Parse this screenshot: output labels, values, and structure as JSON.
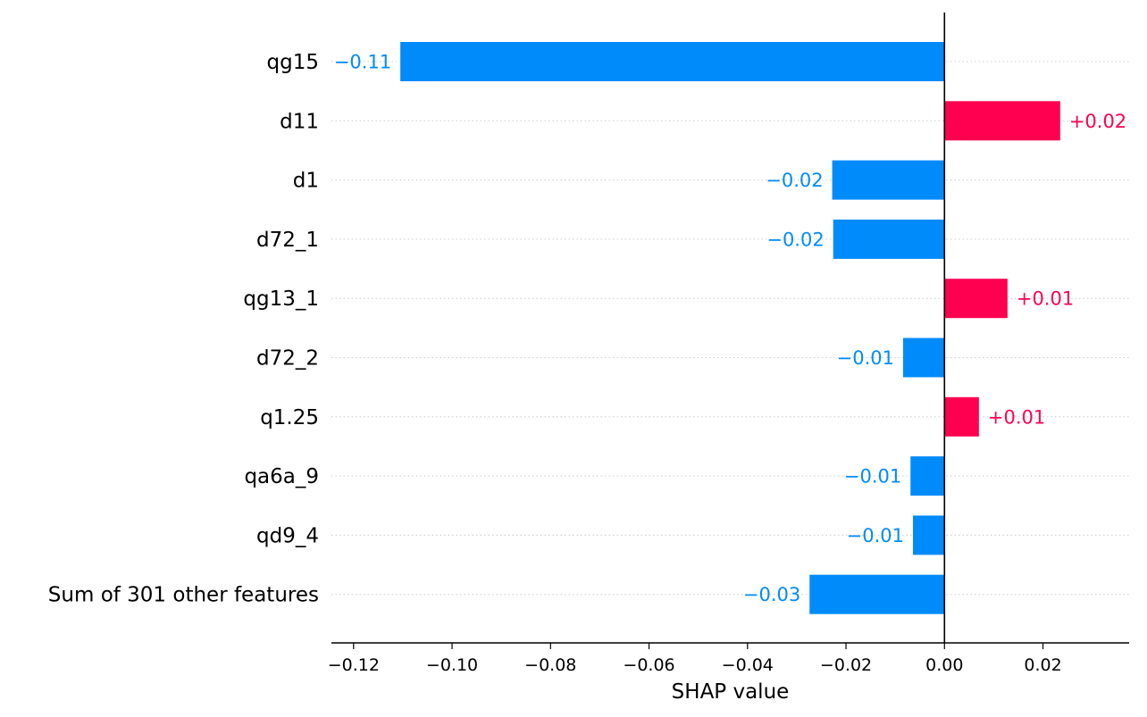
{
  "chart_data": {
    "type": "bar",
    "orientation": "horizontal",
    "xlabel": "SHAP value",
    "xlim": [
      -0.1245,
      0.0375
    ],
    "ticks": [
      -0.12,
      -0.1,
      -0.08,
      -0.06,
      -0.04,
      -0.02,
      0.0,
      0.02
    ],
    "tick_labels": [
      "−0.12",
      "−0.10",
      "−0.08",
      "−0.06",
      "−0.04",
      "−0.02",
      "0.00",
      "0.02"
    ],
    "grid": "dotted horizontal lines per feature",
    "categories": [
      "qg15",
      "d11",
      "d1",
      "d72_1",
      "qg13_1",
      "d72_2",
      "q1.25",
      "qa6a_9",
      "qd9_4",
      "Sum of 301 other features"
    ],
    "values": [
      -0.1105,
      0.0235,
      -0.0228,
      -0.0226,
      0.0128,
      -0.0084,
      0.007,
      -0.0069,
      -0.0064,
      -0.0274
    ],
    "value_labels": [
      "−0.11",
      "+0.02",
      "−0.02",
      "−0.02",
      "+0.01",
      "−0.01",
      "+0.01",
      "−0.01",
      "−0.01",
      "−0.03"
    ],
    "colors": {
      "positive": "#ff0051",
      "negative": "#008bfb",
      "grid": "#cccccc",
      "axis": "#000000"
    }
  }
}
